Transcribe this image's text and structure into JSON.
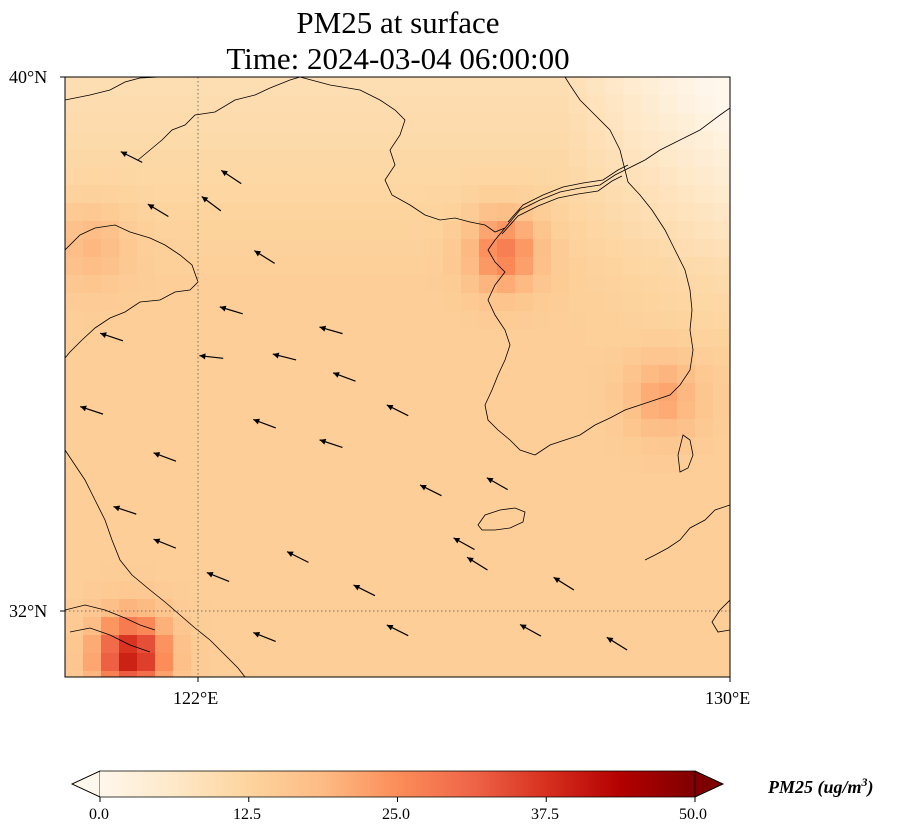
{
  "title": {
    "line1": "PM25 at surface",
    "line2": "Time: 2024-03-04 06:00:00"
  },
  "map": {
    "extent": {
      "lon_min": 120,
      "lon_max": 130,
      "lat_min": 31,
      "lat_max": 40
    },
    "gridlines": {
      "lon": [
        122
      ],
      "lat": [
        32
      ],
      "style": "dotted"
    },
    "lat_ticks": [
      {
        "value": 40,
        "label": "40°N"
      },
      {
        "value": 32,
        "label": "32°N"
      }
    ],
    "lon_ticks": [
      {
        "value": 122,
        "label": "122°E"
      },
      {
        "value": 130,
        "label": "130°E"
      }
    ],
    "field": {
      "variable": "PM25",
      "unit": "ug/m3",
      "background_value": 14,
      "hotspots": [
        {
          "name": "seoul-incheon",
          "lon": 126.6,
          "lat": 37.4,
          "value": 28
        },
        {
          "name": "busan",
          "lon": 129.0,
          "lat": 35.2,
          "value": 22
        },
        {
          "name": "shanghai",
          "lon": 121.0,
          "lat": 31.3,
          "value": 40
        },
        {
          "name": "west-yellow-sea",
          "lon": 120.4,
          "lat": 37.5,
          "value": 20
        }
      ]
    },
    "wind_arrows": [
      {
        "lon": 121.4,
        "lat": 38.0,
        "u": -1,
        "v": 0.6
      },
      {
        "lon": 122.2,
        "lat": 38.1,
        "u": -0.8,
        "v": 0.6
      },
      {
        "lon": 123.0,
        "lat": 37.3,
        "u": -0.8,
        "v": 0.5
      },
      {
        "lon": 124.0,
        "lat": 36.2,
        "u": -0.7,
        "v": 0.2
      },
      {
        "lon": 122.2,
        "lat": 35.8,
        "u": -0.9,
        "v": 0.1
      },
      {
        "lon": 123.3,
        "lat": 35.8,
        "u": -0.8,
        "v": 0.2
      },
      {
        "lon": 124.0,
        "lat": 34.5,
        "u": -0.9,
        "v": 0.3
      },
      {
        "lon": 123.0,
        "lat": 34.8,
        "u": -0.8,
        "v": 0.3
      },
      {
        "lon": 121.5,
        "lat": 34.3,
        "u": -0.8,
        "v": 0.3
      },
      {
        "lon": 120.9,
        "lat": 33.5,
        "u": -0.9,
        "v": 0.3
      },
      {
        "lon": 121.5,
        "lat": 33.0,
        "u": -1,
        "v": 0.4
      },
      {
        "lon": 122.3,
        "lat": 32.5,
        "u": -1,
        "v": 0.4
      },
      {
        "lon": 123.5,
        "lat": 32.8,
        "u": -1,
        "v": 0.5
      },
      {
        "lon": 124.5,
        "lat": 32.3,
        "u": -1,
        "v": 0.5
      },
      {
        "lon": 125.5,
        "lat": 33.8,
        "u": -0.8,
        "v": 0.4
      },
      {
        "lon": 126.2,
        "lat": 32.7,
        "u": -0.8,
        "v": 0.5
      },
      {
        "lon": 125.0,
        "lat": 31.7,
        "u": -1,
        "v": 0.5
      },
      {
        "lon": 123.0,
        "lat": 31.6,
        "u": -1,
        "v": 0.4
      },
      {
        "lon": 127.0,
        "lat": 31.7,
        "u": -0.9,
        "v": 0.5
      },
      {
        "lon": 128.3,
        "lat": 31.5,
        "u": -0.8,
        "v": 0.5
      },
      {
        "lon": 126.5,
        "lat": 33.9,
        "u": -0.7,
        "v": 0.4
      },
      {
        "lon": 122.5,
        "lat": 36.5,
        "u": -1,
        "v": 0.3
      },
      {
        "lon": 120.7,
        "lat": 36.1,
        "u": -0.9,
        "v": 0.3
      },
      {
        "lon": 120.4,
        "lat": 35.0,
        "u": -0.9,
        "v": 0.3
      },
      {
        "lon": 121.0,
        "lat": 38.8,
        "u": -1,
        "v": 0.5
      },
      {
        "lon": 122.5,
        "lat": 38.5,
        "u": -0.9,
        "v": 0.6
      },
      {
        "lon": 126.0,
        "lat": 33.0,
        "u": -0.9,
        "v": 0.5
      },
      {
        "lon": 127.5,
        "lat": 32.4,
        "u": -0.8,
        "v": 0.5
      },
      {
        "lon": 124.2,
        "lat": 35.5,
        "u": -0.8,
        "v": 0.3
      },
      {
        "lon": 125.0,
        "lat": 35.0,
        "u": -0.6,
        "v": 0.3
      }
    ]
  },
  "colorbar": {
    "label": "PM25 (ug/m",
    "label_exponent": "3",
    "label_close": ")",
    "vmin": 0,
    "vmax": 50,
    "extend": "both",
    "colormap": "OrRd",
    "tick_labels": [
      "0.0",
      "12.5",
      "25.0",
      "37.5",
      "50.0"
    ],
    "stops": [
      "#fff7ec",
      "#fee8c8",
      "#fdd49e",
      "#fdbb84",
      "#fc8d59",
      "#ef6548",
      "#d7301f",
      "#b30000",
      "#7f0000"
    ]
  }
}
